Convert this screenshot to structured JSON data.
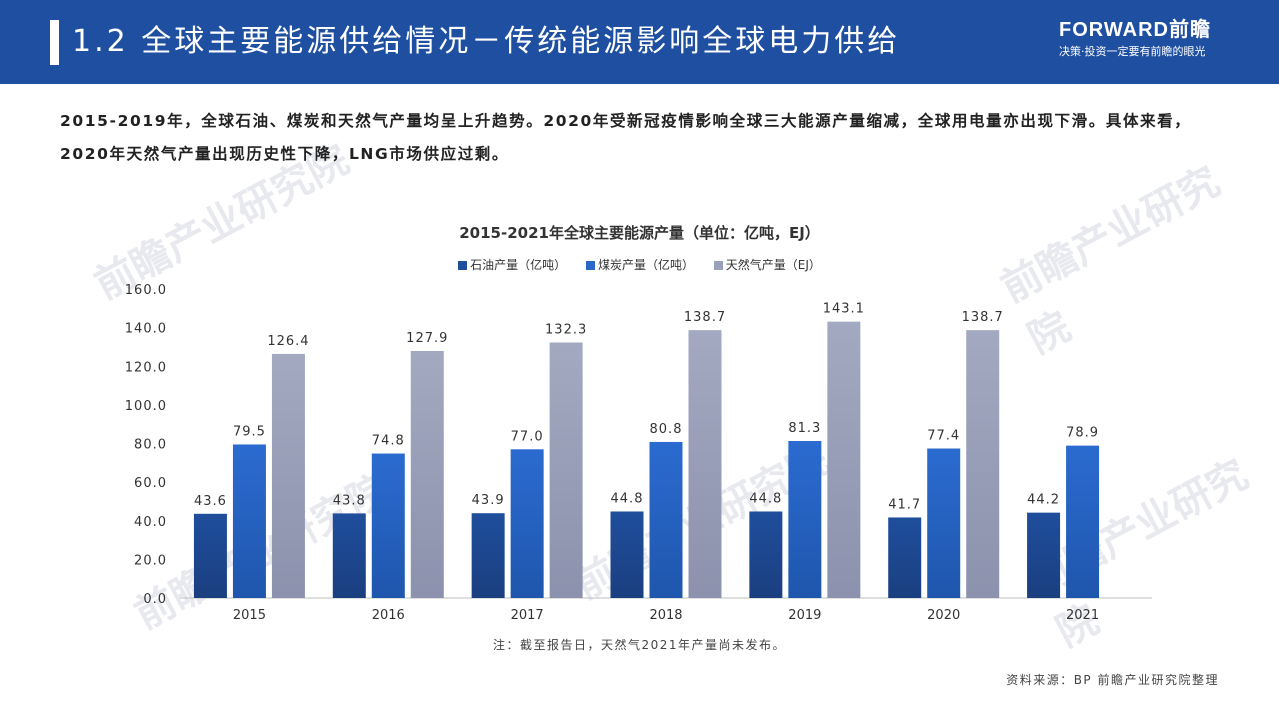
{
  "header": {
    "title": "1.2 全球主要能源供给情况－传统能源影响全球电力供给",
    "brand_name": "FORWARD前瞻",
    "brand_slogan": "决策·投资一定要有前瞻的眼光"
  },
  "intro": "2015-2019年，全球石油、煤炭和天然气产量均呈上升趋势。2020年受新冠疫情影响全球三大能源产量缩减，全球用电量亦出现下滑。具体来看，2020年天然气产量出现历史性下降，LNG市场供应过剩。",
  "watermark": "前瞻产业研究院",
  "chart_data": {
    "type": "bar",
    "title": "2015-2021年全球主要能源产量（单位：亿吨，EJ）",
    "categories": [
      "2015",
      "2016",
      "2017",
      "2018",
      "2019",
      "2020",
      "2021"
    ],
    "series": [
      {
        "name": "石油产量（亿吨）",
        "color": "#1f4e9c",
        "values": [
          43.6,
          43.8,
          43.9,
          44.8,
          44.8,
          41.7,
          44.2
        ]
      },
      {
        "name": "煤炭产量（亿吨）",
        "color": "#2a67c7",
        "values": [
          79.5,
          74.8,
          77.0,
          80.8,
          81.3,
          77.4,
          78.9
        ]
      },
      {
        "name": "天然气产量（EJ）",
        "color": "#9aa1b8",
        "values": [
          126.4,
          127.9,
          132.3,
          138.7,
          143.1,
          138.7,
          null
        ]
      }
    ],
    "ylim": [
      0,
      160
    ],
    "yticks": [
      "0.0",
      "20.0",
      "40.0",
      "60.0",
      "80.0",
      "100.0",
      "120.0",
      "140.0",
      "160.0"
    ],
    "legend_position": "top",
    "grid": false
  },
  "note": "注：截至报告日，天然气2021年产量尚未发布。",
  "source": "资料来源：BP 前瞻产业研究院整理"
}
